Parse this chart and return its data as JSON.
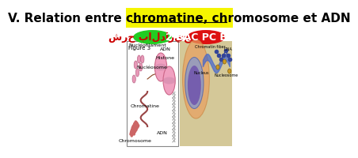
{
  "title": "V. Relation entre chromatine, chromosome et ADN",
  "title_color": "#000000",
  "title_underline": true,
  "title_fontsize": 11,
  "title_bold": true,
  "left_badge_text": "شرح بالداريجة",
  "left_badge_color": "#22cc22",
  "left_badge_text_color": "#cc0000",
  "right_badge_text": "2 BAC PC BIOF",
  "right_badge_color": "#dd1111",
  "right_badge_text_color": "#ffffff",
  "background_color": "#ffffff",
  "left_panel_bg": "#ffffff",
  "left_panel_border": "#888888",
  "right_panel_bg": "#e8dfc0",
  "figure_label": "Figure 3",
  "left_labels": [
    "Nucléofilament",
    "ADN",
    "Histone",
    "Nucléosome",
    "Chromatine",
    "ADN",
    "Chromosome"
  ],
  "right_labels": [
    "Chromatin fiber",
    "DNA",
    "Nucleus",
    "Nucleosome"
  ]
}
